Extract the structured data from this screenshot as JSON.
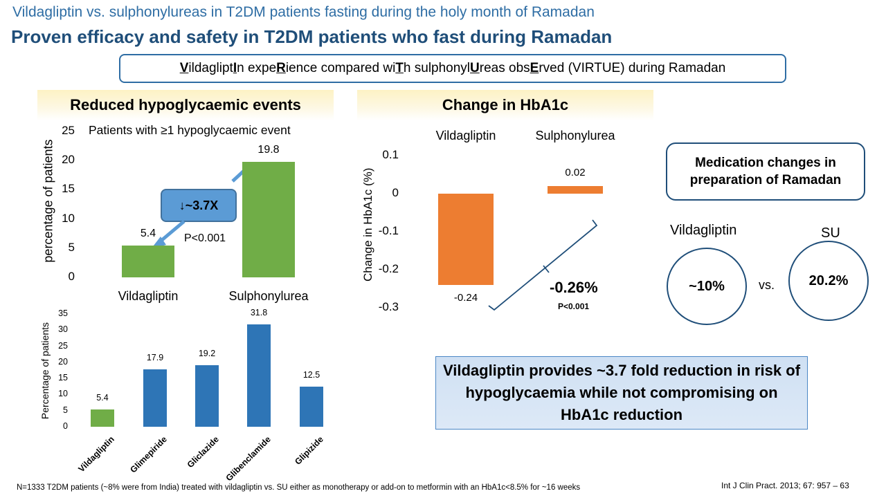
{
  "header": {
    "subtitle": "Vildagliptin vs. sulphonylureas in T2DM patients fasting during the holy month of Ramadan",
    "title": "Proven efficacy and safety in T2DM patients who fast during Ramadan"
  },
  "virtue": {
    "segments": [
      {
        "t": "V",
        "u": true
      },
      {
        "t": "ildaglipt",
        "u": false
      },
      {
        "t": "I",
        "u": true
      },
      {
        "t": "n expe",
        "u": false
      },
      {
        "t": "R",
        "u": true
      },
      {
        "t": "ience compared wi",
        "u": false
      },
      {
        "t": "T",
        "u": true
      },
      {
        "t": "h sulphonyl",
        "u": false
      },
      {
        "t": "U",
        "u": true
      },
      {
        "t": "reas obs",
        "u": false
      },
      {
        "t": "E",
        "u": true
      },
      {
        "t": "rved (VIRTUE) during Ramadan",
        "u": false
      }
    ]
  },
  "hypo_panel": {
    "heading": "Reduced hypoglycaemic events",
    "fold_label": "↓~3.7X",
    "pvalue": "P<0.001"
  },
  "hba1c_panel": {
    "heading": "Change in HbA1c",
    "difference": "-0.26%",
    "pvalue": "P<0.001"
  },
  "medication": {
    "box_text": "Medication changes in preparation of Ramadan",
    "left_label": "Vildagliptin",
    "right_label": "SU",
    "left_value": "~10%",
    "right_value": "20.2%",
    "vs": "vs."
  },
  "conclusion": "Vildagliptin provides ~3.7 fold reduction in risk of hypoglycaemia while not compromising on HbA1c reduction",
  "footnote": "N=1333 T2DM patients (~8% were from India) treated with vildagliptin vs. SU either as monotherapy or add-on to metformin with an HbA1c<8.5% for ~16 weeks",
  "reference": "Int J Clin Pract. 2013; 67: 957 – 63",
  "colors": {
    "green": "#70ad47",
    "blue": "#2e75b6",
    "orange": "#ed7d31",
    "title": "#1f4e79"
  },
  "chart_data": [
    {
      "type": "bar",
      "title": "Patients with ≥1 hypoglycaemic event",
      "ylabel": "percentage of patients",
      "categories": [
        "Vildagliptin",
        "Sulphonylurea"
      ],
      "values": [
        5.4,
        19.8
      ],
      "yticks": [
        "0",
        "5",
        "10",
        "15",
        "20",
        "25"
      ],
      "ylim": [
        0,
        25
      ]
    },
    {
      "type": "bar",
      "ylabel": "Percentage of patients",
      "categories": [
        "Vildagliptin",
        "Glimepiride",
        "Gliclazide",
        "Glibenclamide",
        "Glipizide"
      ],
      "values": [
        5.4,
        17.9,
        19.2,
        31.8,
        12.5
      ],
      "yticks": [
        "0",
        "5",
        "10",
        "15",
        "20",
        "25",
        "30",
        "35"
      ],
      "ylim": [
        0,
        35
      ]
    },
    {
      "type": "bar",
      "ylabel": "Change in HbA1c (%)",
      "categories": [
        "Vildagliptin",
        "Sulphonylurea"
      ],
      "values": [
        -0.24,
        0.02
      ],
      "yticks": [
        "0.1",
        "0",
        "-0.1",
        "-0.2",
        "-0.3"
      ],
      "ylim": [
        -0.3,
        0.1
      ]
    }
  ]
}
